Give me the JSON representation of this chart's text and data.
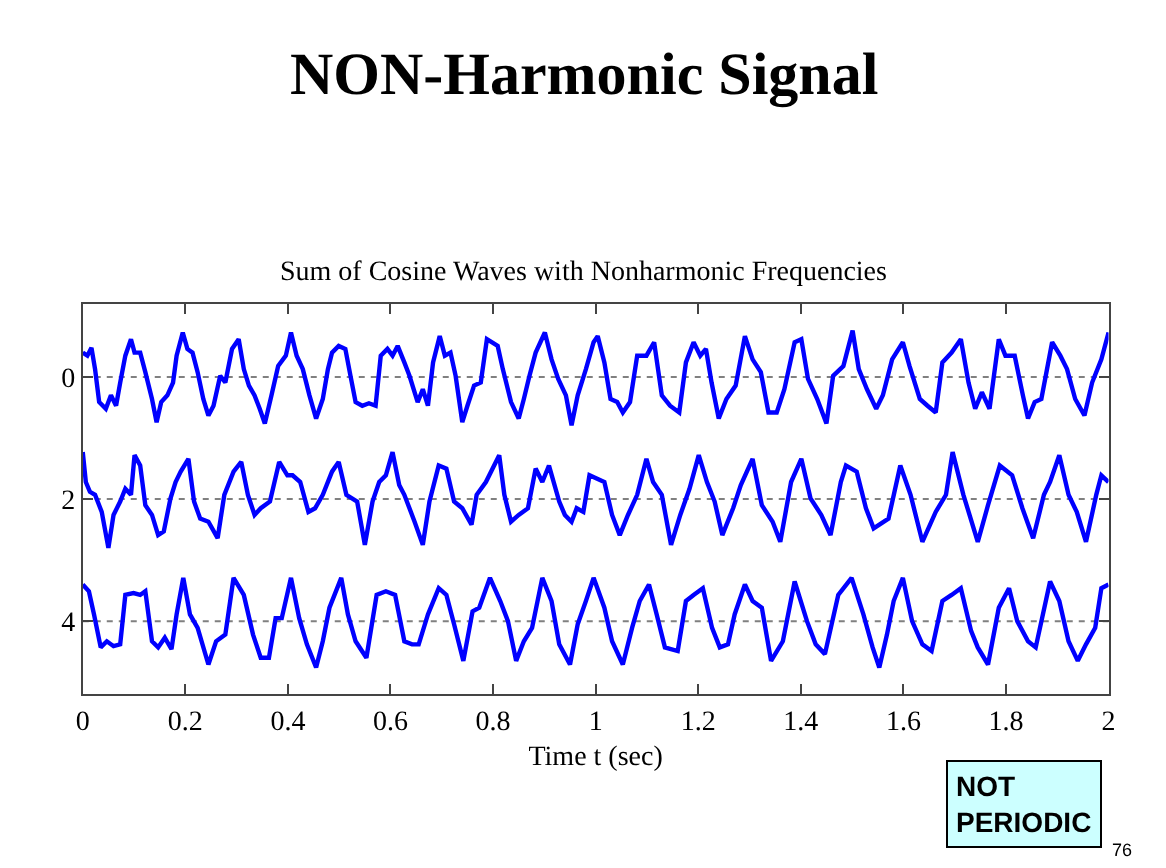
{
  "chart_data": {
    "type": "line",
    "title": "NON-Harmonic Signal",
    "subtitle": "Sum of Cosine Waves with Nonharmonic Frequencies",
    "xlabel": "Time t (sec)",
    "xlim": [
      0,
      2
    ],
    "xticks": [
      0,
      0.2,
      0.4,
      0.6,
      0.8,
      1,
      1.2,
      1.4,
      1.6,
      1.8,
      2
    ],
    "ylim": [
      5.2,
      -1.2
    ],
    "yticks": [
      0,
      2,
      4
    ],
    "grid": false,
    "marker": "none",
    "line_style": "solid",
    "ref_lines": [
      {
        "axis": "y",
        "value": 0,
        "color": "#808080",
        "line_style": "dotted"
      },
      {
        "axis": "y",
        "value": 2,
        "color": "#808080",
        "line_style": "dotted"
      },
      {
        "axis": "y",
        "value": 4,
        "color": "#808080",
        "line_style": "dotted"
      }
    ],
    "annotations": [
      "NOT\nPERIODIC",
      "76"
    ],
    "series": [
      {
        "color": "#0000ff",
        "x": [
          0,
          0.009,
          0.017,
          0.024,
          0.032,
          0.045,
          0.055,
          0.065,
          0.073,
          0.083,
          0.094,
          0.101,
          0.112,
          0.122,
          0.135,
          0.144,
          0.153,
          0.165,
          0.176,
          0.183,
          0.195,
          0.204,
          0.214,
          0.224,
          0.235,
          0.245,
          0.255,
          0.268,
          0.278,
          0.291,
          0.304,
          0.314,
          0.324,
          0.335,
          0.345,
          0.355,
          0.368,
          0.381,
          0.396,
          0.406,
          0.417,
          0.429,
          0.442,
          0.455,
          0.468,
          0.478,
          0.486,
          0.499,
          0.512,
          0.522,
          0.532,
          0.545,
          0.558,
          0.571,
          0.581,
          0.594,
          0.604,
          0.614,
          0.627,
          0.637,
          0.653,
          0.663,
          0.673,
          0.683,
          0.696,
          0.706,
          0.717,
          0.727,
          0.74,
          0.75,
          0.763,
          0.776,
          0.788,
          0.809,
          0.819,
          0.835,
          0.85,
          0.86,
          0.871,
          0.883,
          0.901,
          0.914,
          0.927,
          0.942,
          0.953,
          0.965,
          0.981,
          0.996,
          1.004,
          1.017,
          1.029,
          1.042,
          1.053,
          1.067,
          1.081,
          1.099,
          1.114,
          1.129,
          1.145,
          1.163,
          1.176,
          1.191,
          1.204,
          1.215,
          1.226,
          1.24,
          1.255,
          1.273,
          1.291,
          1.306,
          1.322,
          1.337,
          1.353,
          1.368,
          1.388,
          1.401,
          1.414,
          1.432,
          1.45,
          1.463,
          1.483,
          1.501,
          1.513,
          1.529,
          1.547,
          1.56,
          1.578,
          1.599,
          1.612,
          1.632,
          1.647,
          1.663,
          1.676,
          1.694,
          1.712,
          1.727,
          1.74,
          1.753,
          1.768,
          1.786,
          1.799,
          1.817,
          1.833,
          1.843,
          1.856,
          1.869,
          1.89,
          1.906,
          1.919,
          1.935,
          1.953,
          1.968,
          1.986,
          2
        ],
        "values": [
          -0.4,
          -0.35,
          -0.48,
          -0.13,
          0.41,
          0.52,
          0.3,
          0.47,
          0.09,
          -0.35,
          -0.62,
          -0.4,
          -0.4,
          -0.08,
          0.36,
          0.74,
          0.41,
          0.3,
          0.09,
          -0.35,
          -0.73,
          -0.46,
          -0.4,
          -0.08,
          0.36,
          0.63,
          0.47,
          -0.02,
          0.09,
          -0.46,
          -0.62,
          -0.13,
          0.14,
          0.3,
          0.52,
          0.76,
          0.3,
          -0.18,
          -0.35,
          -0.73,
          -0.35,
          -0.13,
          0.3,
          0.68,
          0.36,
          -0.13,
          -0.4,
          -0.51,
          -0.46,
          -0.02,
          0.41,
          0.47,
          0.43,
          0.47,
          -0.35,
          -0.46,
          -0.35,
          -0.51,
          -0.24,
          -0.02,
          0.41,
          0.2,
          0.47,
          -0.24,
          -0.67,
          -0.35,
          -0.4,
          -0.02,
          0.74,
          0.47,
          0.14,
          0.09,
          -0.62,
          -0.51,
          -0.13,
          0.41,
          0.68,
          0.36,
          -0.02,
          -0.4,
          -0.73,
          -0.29,
          0.03,
          0.3,
          0.79,
          0.3,
          -0.13,
          -0.57,
          -0.67,
          -0.24,
          0.36,
          0.41,
          0.58,
          0.41,
          -0.35,
          -0.35,
          -0.57,
          0.3,
          0.47,
          0.58,
          -0.24,
          -0.57,
          -0.35,
          -0.46,
          0.09,
          0.68,
          0.36,
          0.14,
          -0.67,
          -0.29,
          -0.08,
          0.58,
          0.58,
          0.2,
          -0.57,
          -0.62,
          0.03,
          0.36,
          0.76,
          -0.02,
          -0.18,
          -0.76,
          -0.13,
          0.2,
          0.52,
          0.3,
          -0.29,
          -0.57,
          -0.18,
          0.36,
          0.47,
          0.58,
          -0.24,
          -0.4,
          -0.62,
          0.09,
          0.52,
          0.25,
          0.52,
          -0.62,
          -0.35,
          -0.35,
          0.3,
          0.68,
          0.41,
          0.36,
          -0.57,
          -0.35,
          -0.13,
          0.36,
          0.63,
          0.09,
          -0.29,
          -0.73
        ]
      },
      {
        "color": "#0000ff",
        "x": [
          0,
          0.006,
          0.014,
          0.024,
          0.037,
          0.05,
          0.06,
          0.073,
          0.083,
          0.094,
          0.101,
          0.112,
          0.122,
          0.135,
          0.147,
          0.158,
          0.171,
          0.181,
          0.191,
          0.206,
          0.217,
          0.229,
          0.245,
          0.263,
          0.276,
          0.294,
          0.309,
          0.322,
          0.335,
          0.347,
          0.365,
          0.383,
          0.399,
          0.409,
          0.424,
          0.44,
          0.453,
          0.468,
          0.486,
          0.499,
          0.514,
          0.535,
          0.55,
          0.565,
          0.578,
          0.591,
          0.604,
          0.617,
          0.627,
          0.647,
          0.663,
          0.676,
          0.694,
          0.709,
          0.724,
          0.74,
          0.758,
          0.768,
          0.786,
          0.812,
          0.822,
          0.835,
          0.85,
          0.868,
          0.883,
          0.896,
          0.909,
          0.929,
          0.94,
          0.953,
          0.963,
          0.976,
          0.988,
          1.017,
          1.032,
          1.047,
          1.063,
          1.081,
          1.099,
          1.112,
          1.129,
          1.147,
          1.165,
          1.183,
          1.201,
          1.217,
          1.232,
          1.247,
          1.268,
          1.283,
          1.306,
          1.324,
          1.345,
          1.36,
          1.381,
          1.401,
          1.419,
          1.44,
          1.458,
          1.478,
          1.488,
          1.509,
          1.527,
          1.542,
          1.571,
          1.594,
          1.614,
          1.637,
          1.663,
          1.683,
          1.696,
          1.717,
          1.745,
          1.765,
          1.788,
          1.812,
          1.832,
          1.853,
          1.874,
          1.886,
          1.904,
          1.922,
          1.938,
          1.956,
          1.976,
          1.986,
          2
        ],
        "values": [
          1.23,
          1.72,
          1.88,
          1.93,
          2.21,
          2.8,
          2.26,
          2.04,
          1.83,
          1.93,
          1.28,
          1.45,
          2.1,
          2.26,
          2.59,
          2.53,
          1.99,
          1.72,
          1.55,
          1.34,
          2.04,
          2.32,
          2.37,
          2.64,
          1.93,
          1.55,
          1.39,
          1.93,
          2.26,
          2.15,
          2.04,
          1.39,
          1.61,
          1.61,
          1.72,
          2.21,
          2.15,
          1.93,
          1.55,
          1.39,
          1.93,
          2.04,
          2.75,
          2.04,
          1.72,
          1.61,
          1.23,
          1.77,
          1.93,
          2.37,
          2.75,
          2.04,
          1.45,
          1.5,
          2.04,
          2.15,
          2.42,
          1.93,
          1.72,
          1.28,
          1.93,
          2.37,
          2.26,
          2.15,
          1.5,
          1.72,
          1.45,
          2.04,
          2.26,
          2.37,
          2.15,
          2.21,
          1.61,
          1.72,
          2.26,
          2.59,
          2.26,
          1.93,
          1.34,
          1.72,
          1.93,
          2.75,
          2.26,
          1.83,
          1.28,
          1.72,
          2.04,
          2.59,
          2.15,
          1.77,
          1.34,
          2.1,
          2.37,
          2.7,
          1.72,
          1.34,
          1.99,
          2.26,
          2.59,
          1.72,
          1.45,
          1.55,
          2.15,
          2.48,
          2.32,
          1.45,
          1.93,
          2.7,
          2.21,
          1.93,
          1.23,
          1.93,
          2.7,
          2.1,
          1.45,
          1.61,
          2.15,
          2.64,
          1.93,
          1.72,
          1.28,
          1.93,
          2.21,
          2.7,
          1.93,
          1.61,
          1.72
        ]
      },
      {
        "color": "#0000ff",
        "x": [
          0,
          0.012,
          0.022,
          0.035,
          0.047,
          0.06,
          0.073,
          0.083,
          0.099,
          0.112,
          0.122,
          0.135,
          0.147,
          0.16,
          0.173,
          0.183,
          0.196,
          0.209,
          0.224,
          0.245,
          0.26,
          0.278,
          0.294,
          0.314,
          0.332,
          0.347,
          0.363,
          0.376,
          0.388,
          0.406,
          0.422,
          0.437,
          0.455,
          0.468,
          0.481,
          0.504,
          0.517,
          0.532,
          0.553,
          0.573,
          0.591,
          0.609,
          0.627,
          0.642,
          0.655,
          0.673,
          0.694,
          0.709,
          0.724,
          0.742,
          0.76,
          0.773,
          0.794,
          0.814,
          0.829,
          0.845,
          0.86,
          0.876,
          0.896,
          0.914,
          0.929,
          0.95,
          0.965,
          0.981,
          0.996,
          1.017,
          1.032,
          1.053,
          1.071,
          1.086,
          1.104,
          1.119,
          1.135,
          1.16,
          1.176,
          1.191,
          1.209,
          1.227,
          1.242,
          1.258,
          1.271,
          1.291,
          1.306,
          1.324,
          1.342,
          1.365,
          1.388,
          1.412,
          1.429,
          1.447,
          1.473,
          1.499,
          1.522,
          1.54,
          1.553,
          1.568,
          1.581,
          1.599,
          1.617,
          1.637,
          1.655,
          1.676,
          1.694,
          1.712,
          1.732,
          1.745,
          1.765,
          1.786,
          1.806,
          1.822,
          1.843,
          1.858,
          1.886,
          1.904,
          1.922,
          1.94,
          1.956,
          1.974,
          1.986,
          2
        ],
        "values": [
          3.4,
          3.51,
          3.89,
          4.43,
          4.33,
          4.41,
          4.38,
          3.57,
          3.54,
          3.57,
          3.51,
          4.33,
          4.43,
          4.27,
          4.46,
          3.89,
          3.29,
          3.89,
          4.11,
          4.71,
          4.33,
          4.22,
          3.29,
          3.57,
          4.22,
          4.6,
          4.6,
          3.95,
          3.95,
          3.29,
          3.95,
          4.38,
          4.76,
          4.33,
          3.78,
          3.29,
          3.89,
          4.33,
          4.6,
          3.57,
          3.51,
          3.57,
          4.33,
          4.38,
          4.38,
          3.89,
          3.46,
          3.57,
          4.05,
          4.65,
          3.84,
          3.78,
          3.29,
          3.67,
          4,
          4.65,
          4.33,
          4.11,
          3.29,
          3.67,
          4.38,
          4.71,
          4.05,
          3.67,
          3.29,
          3.78,
          4.33,
          4.71,
          4.11,
          3.67,
          3.4,
          3.89,
          4.43,
          4.49,
          3.67,
          3.57,
          3.46,
          4.11,
          4.43,
          4.38,
          3.89,
          3.4,
          3.67,
          3.78,
          4.65,
          4.33,
          3.35,
          4,
          4.38,
          4.54,
          3.57,
          3.29,
          3.89,
          4.43,
          4.76,
          4.22,
          3.67,
          3.29,
          4,
          4.38,
          4.49,
          3.67,
          3.57,
          3.46,
          4.16,
          4.43,
          4.71,
          3.78,
          3.46,
          4,
          4.33,
          4.43,
          3.35,
          3.67,
          4.33,
          4.65,
          4.38,
          4.11,
          3.46,
          3.4
        ]
      }
    ]
  }
}
